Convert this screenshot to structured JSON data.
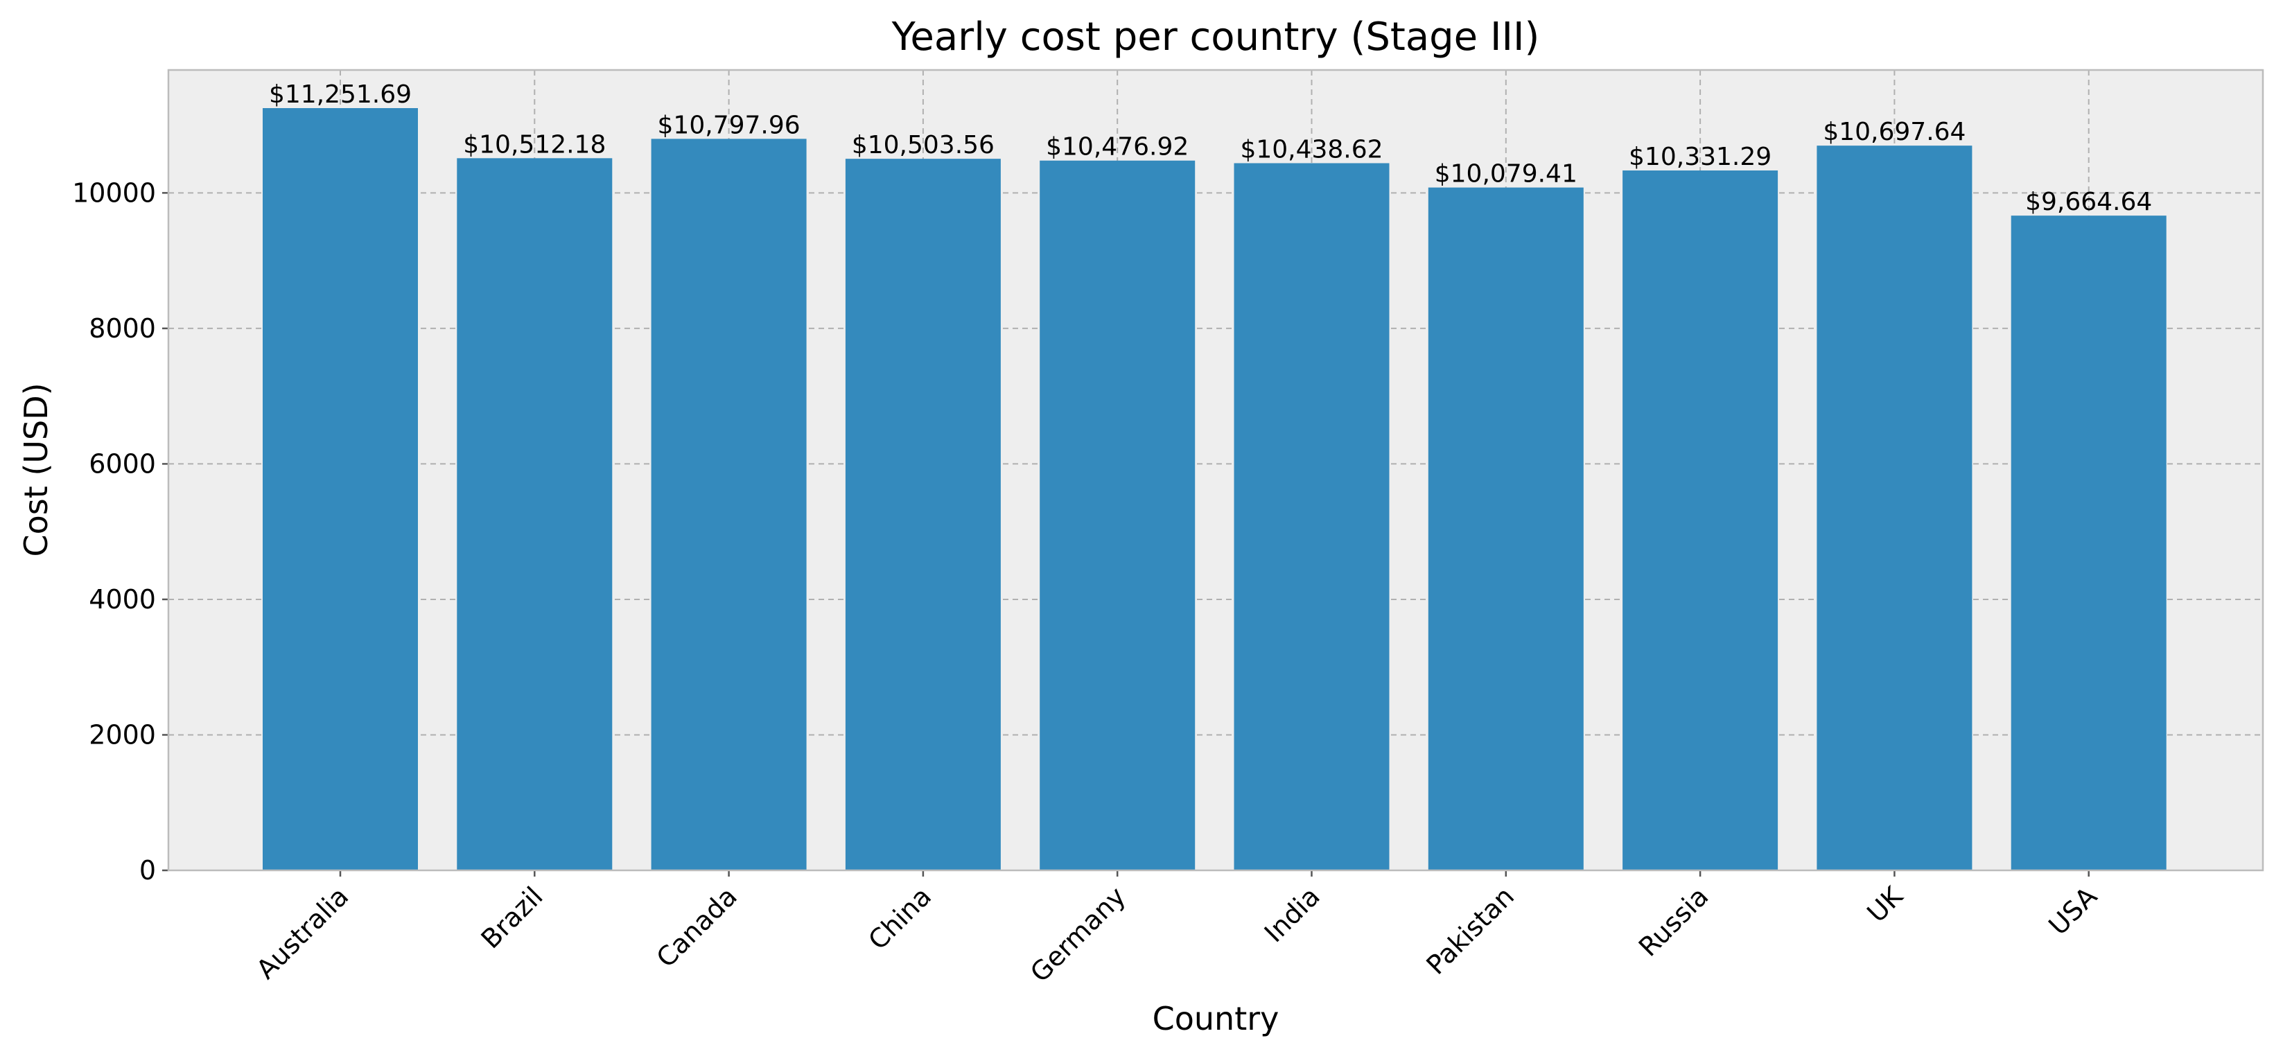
{
  "chart_data": {
    "type": "bar",
    "title": "Yearly cost per country (Stage III)",
    "xlabel": "Country",
    "ylabel": "Cost (USD)",
    "categories": [
      "Australia",
      "Brazil",
      "Canada",
      "China",
      "Germany",
      "India",
      "Pakistan",
      "Russia",
      "UK",
      "USA"
    ],
    "values": [
      11251.69,
      10512.18,
      10797.96,
      10503.56,
      10476.92,
      10438.62,
      10079.41,
      10331.29,
      10697.64,
      9664.64
    ],
    "data_labels": [
      "$11,251.69",
      "$10,512.18",
      "$10,797.96",
      "$10,503.56",
      "$10,476.92",
      "$10,438.62",
      "$10,079.41",
      "$10,331.29",
      "$10,697.64",
      "$9,664.64"
    ],
    "yticks": [
      0,
      2000,
      4000,
      6000,
      8000,
      10000
    ],
    "ylim": [
      0,
      11814.27
    ],
    "grid": true,
    "colors": {
      "bar": "#348abd",
      "plot_background": "#eeeeee",
      "plot_border": "#bcbcbc",
      "grid": "#b0b0b0"
    }
  }
}
